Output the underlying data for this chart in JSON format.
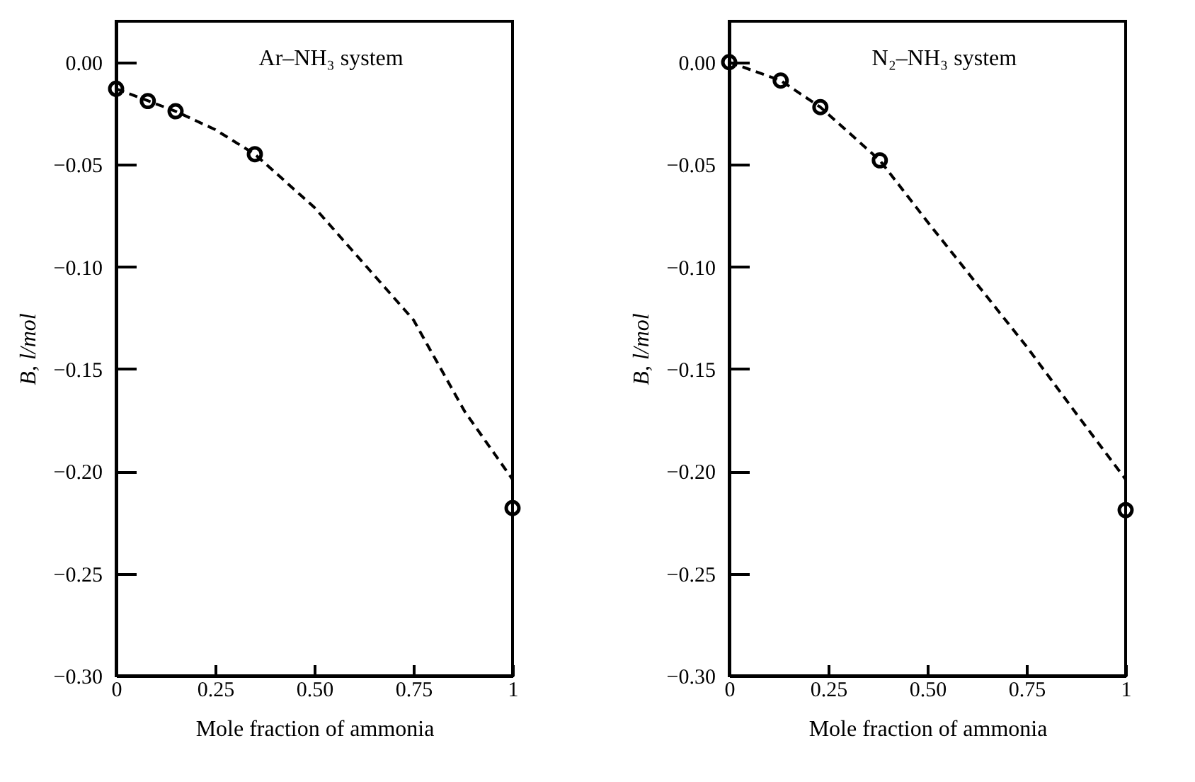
{
  "chart_data": [
    {
      "type": "scatter",
      "xlabel": "Mole fraction of ammonia",
      "ylabel": "B, l/mol",
      "annotations": [
        "Ar–NH₃ system"
      ],
      "xlim": [
        0,
        1
      ],
      "ylim": [
        -0.3,
        0.02
      ],
      "xticks": [
        0,
        0.25,
        {
          "value": 0.5,
          "label": "0.50"
        },
        0.75,
        1
      ],
      "yticks": [
        {
          "value": 0,
          "label": "0.00"
        },
        {
          "value": -0.05,
          "label": "−0.05"
        },
        {
          "value": -0.1,
          "label": "−0.10"
        },
        {
          "value": -0.15,
          "label": "−0.15"
        },
        {
          "value": -0.2,
          "label": "−0.20"
        },
        {
          "value": -0.25,
          "label": "−0.25"
        },
        {
          "value": -0.3,
          "label": "−0.30"
        }
      ],
      "series": [
        {
          "type": "scatter",
          "color": "#000000",
          "marker": "circle",
          "x": [
            0,
            0.08,
            0.15,
            0.35,
            1
          ],
          "values": [
            -0.013,
            -0.019,
            -0.024,
            -0.045,
            -0.218
          ]
        },
        {
          "type": "line",
          "color": "#000000",
          "line_style": "dashed",
          "x": [
            0,
            0.15,
            0.25,
            0.35,
            0.5,
            0.75,
            0.88,
            1
          ],
          "values": [
            -0.013,
            -0.024,
            -0.033,
            -0.045,
            -0.071,
            -0.126,
            -0.171,
            -0.204
          ]
        }
      ]
    },
    {
      "type": "scatter",
      "xlabel": "Mole fraction of ammonia",
      "ylabel": "B, l/mol",
      "annotations": [
        "N₂–NH₃ system"
      ],
      "xlim": [
        0,
        1
      ],
      "ylim": [
        -0.3,
        0.02
      ],
      "xticks": [
        0,
        0.25,
        {
          "value": 0.5,
          "label": "0.50"
        },
        0.75,
        1
      ],
      "yticks": [
        {
          "value": 0,
          "label": "0.00"
        },
        {
          "value": -0.05,
          "label": "−0.05"
        },
        {
          "value": -0.1,
          "label": "−0.10"
        },
        {
          "value": -0.15,
          "label": "−0.15"
        },
        {
          "value": -0.2,
          "label": "−0.20"
        },
        {
          "value": -0.25,
          "label": "−0.25"
        },
        {
          "value": -0.3,
          "label": "−0.30"
        }
      ],
      "series": [
        {
          "type": "scatter",
          "color": "#000000",
          "marker": "circle",
          "x": [
            0,
            0.13,
            0.23,
            0.38,
            1
          ],
          "values": [
            0.0,
            -0.009,
            -0.022,
            -0.048,
            -0.219
          ]
        },
        {
          "type": "line",
          "color": "#000000",
          "line_style": "dashed",
          "x": [
            0,
            0.13,
            0.23,
            0.38,
            0.5,
            0.75,
            0.88,
            1
          ],
          "values": [
            0.0,
            -0.009,
            -0.022,
            -0.048,
            -0.078,
            -0.139,
            -0.173,
            -0.204
          ]
        }
      ]
    }
  ]
}
